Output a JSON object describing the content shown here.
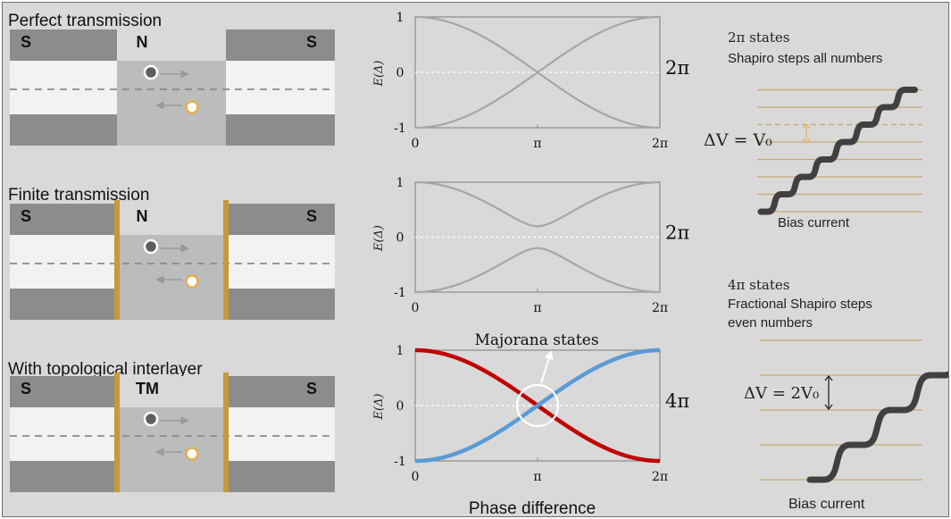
{
  "colors": {
    "background": "#d9d9d9",
    "superconductor": "#8c8c8c",
    "band_white": "#f2f2f2",
    "junction_gray": "#bcbcbc",
    "barrier_gold": "#c59a3a",
    "curve_gray": "#a6a6a6",
    "majorana_red": "#c00000",
    "majorana_blue": "#5b9bd5",
    "step_line_gold": "#c8a874",
    "staircase": "#404040"
  },
  "icons": {
    "electron": "filled-gray-circle-icon",
    "hole": "gold-ring-circle-icon",
    "arrow_right": "arrow-right-icon",
    "arrow_left": "arrow-left-icon"
  },
  "junctions": [
    {
      "title": "Perfect transmission",
      "left_label": "S",
      "middle_label": "N",
      "right_label": "S",
      "barriers": false
    },
    {
      "title": "Finite transmission",
      "left_label": "S",
      "middle_label": "N",
      "right_label": "S",
      "barriers": true
    },
    {
      "title": "With topological interlayer",
      "left_label": "S",
      "middle_label": "TM",
      "right_label": "S",
      "barriers": true
    }
  ],
  "plots": {
    "ylabel": "E(Δ)",
    "ytick_labels": [
      "1",
      "0",
      "-1"
    ],
    "xtick_labels": [
      "0",
      "π",
      "2π"
    ],
    "period_labels": [
      "2π",
      "2π",
      "4π"
    ],
    "majorana_label": "Majorana states",
    "xlabel": "Phase difference"
  },
  "chart_data": [
    {
      "type": "line",
      "title": "",
      "xlabel": "",
      "ylabel": "E(Δ)",
      "x_range": [
        "0",
        "2π"
      ],
      "ylim": [
        -1,
        1
      ],
      "transmission": 1.0,
      "series": [
        {
          "x": [
            "0",
            "π/2",
            "π",
            "3π/2",
            "2π"
          ],
          "values": [
            1,
            0.71,
            0,
            -0.71,
            -1
          ]
        },
        {
          "x": [
            "0",
            "π/2",
            "π",
            "3π/2",
            "2π"
          ],
          "values": [
            -1,
            -0.71,
            0,
            0.71,
            1
          ]
        }
      ]
    },
    {
      "type": "line",
      "title": "",
      "xlabel": "",
      "ylabel": "E(Δ)",
      "x_range": [
        "0",
        "2π"
      ],
      "ylim": [
        -1,
        1
      ],
      "transmission": 0.96,
      "series": [
        {
          "x": [
            "0",
            "π/2",
            "π",
            "3π/2",
            "2π"
          ],
          "values": [
            1,
            0.72,
            0.2,
            0.72,
            1
          ]
        },
        {
          "x": [
            "0",
            "π/2",
            "π",
            "3π/2",
            "2π"
          ],
          "values": [
            -1,
            -0.72,
            -0.2,
            -0.72,
            -1
          ]
        }
      ]
    },
    {
      "type": "line",
      "title": "",
      "xlabel": "Phase difference",
      "ylabel": "E(Δ)",
      "x_range": [
        "0",
        "2π"
      ],
      "ylim": [
        -1,
        1
      ],
      "series": [
        {
          "name": "",
          "color": "#c00000",
          "x": [
            "0",
            "π/2",
            "π",
            "3π/2",
            "2π"
          ],
          "values": [
            1,
            0.71,
            0,
            -0.71,
            -1
          ]
        },
        {
          "name": "",
          "color": "#5b9bd5",
          "x": [
            "0",
            "π/2",
            "π",
            "3π/2",
            "2π"
          ],
          "values": [
            -1,
            -0.71,
            0,
            0.71,
            1
          ]
        }
      ],
      "annotation": "Majorana states"
    }
  ],
  "shapiro": {
    "top": {
      "line1": "2π states",
      "line2": "Shapiro steps all numbers",
      "dv_label": "ΔV = V₀",
      "xlabel": "Bias current",
      "steps": 7
    },
    "bottom": {
      "line1": "4π states",
      "line2": "Fractional Shapiro steps",
      "line3": "even numbers",
      "dv_label": "ΔV = 2V₀",
      "xlabel": "Bias current",
      "steps": 4
    }
  }
}
